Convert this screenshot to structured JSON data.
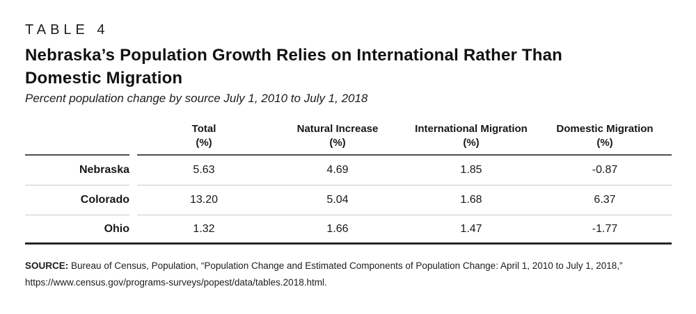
{
  "colors": {
    "text": "#171717",
    "header_rule": "#4d4d4d",
    "row_divider": "#c8c8c8",
    "bottom_rule": "#262626",
    "background": "#ffffff"
  },
  "eyebrow": "TABLE 4",
  "title": {
    "line1": "Nebraska’s Population Growth Relies on International Rather Than",
    "line2": "Domestic Migration"
  },
  "subtitle": "Percent population change by source July 1, 2010 to July 1, 2018",
  "table": {
    "columns": [
      {
        "label": "Total",
        "unit": "(%)"
      },
      {
        "label": "Natural Increase",
        "unit": "(%)"
      },
      {
        "label": "International Migration",
        "unit": "(%)"
      },
      {
        "label": "Domestic Migration",
        "unit": "(%)"
      }
    ],
    "rows": [
      {
        "label": "Nebraska",
        "values": [
          "5.63",
          "4.69",
          "1.85",
          "-0.87"
        ]
      },
      {
        "label": "Colorado",
        "values": [
          "13.20",
          "5.04",
          "1.68",
          "6.37"
        ]
      },
      {
        "label": "Ohio",
        "values": [
          "1.32",
          "1.66",
          "1.47",
          "-1.77"
        ]
      }
    ]
  },
  "source": {
    "label": "SOURCE:",
    "line1": "Bureau of Census, Population, “Population Change and Estimated Components of Population Change: April 1, 2010 to July 1, 2018,”",
    "line2": "https://www.census.gov/programs-surveys/popest/data/tables.2018.html."
  },
  "chart_data": {
    "type": "table",
    "title": "Nebraska’s Population Growth Relies on International Rather Than Domestic Migration",
    "subtitle": "Percent population change by source July 1, 2010 to July 1, 2018",
    "columns": [
      "Total (%)",
      "Natural Increase (%)",
      "International Migration (%)",
      "Domestic Migration (%)"
    ],
    "row_labels": [
      "Nebraska",
      "Colorado",
      "Ohio"
    ],
    "values": [
      [
        5.63,
        4.69,
        1.85,
        -0.87
      ],
      [
        13.2,
        5.04,
        1.68,
        6.37
      ],
      [
        1.32,
        1.66,
        1.47,
        -1.77
      ]
    ]
  }
}
